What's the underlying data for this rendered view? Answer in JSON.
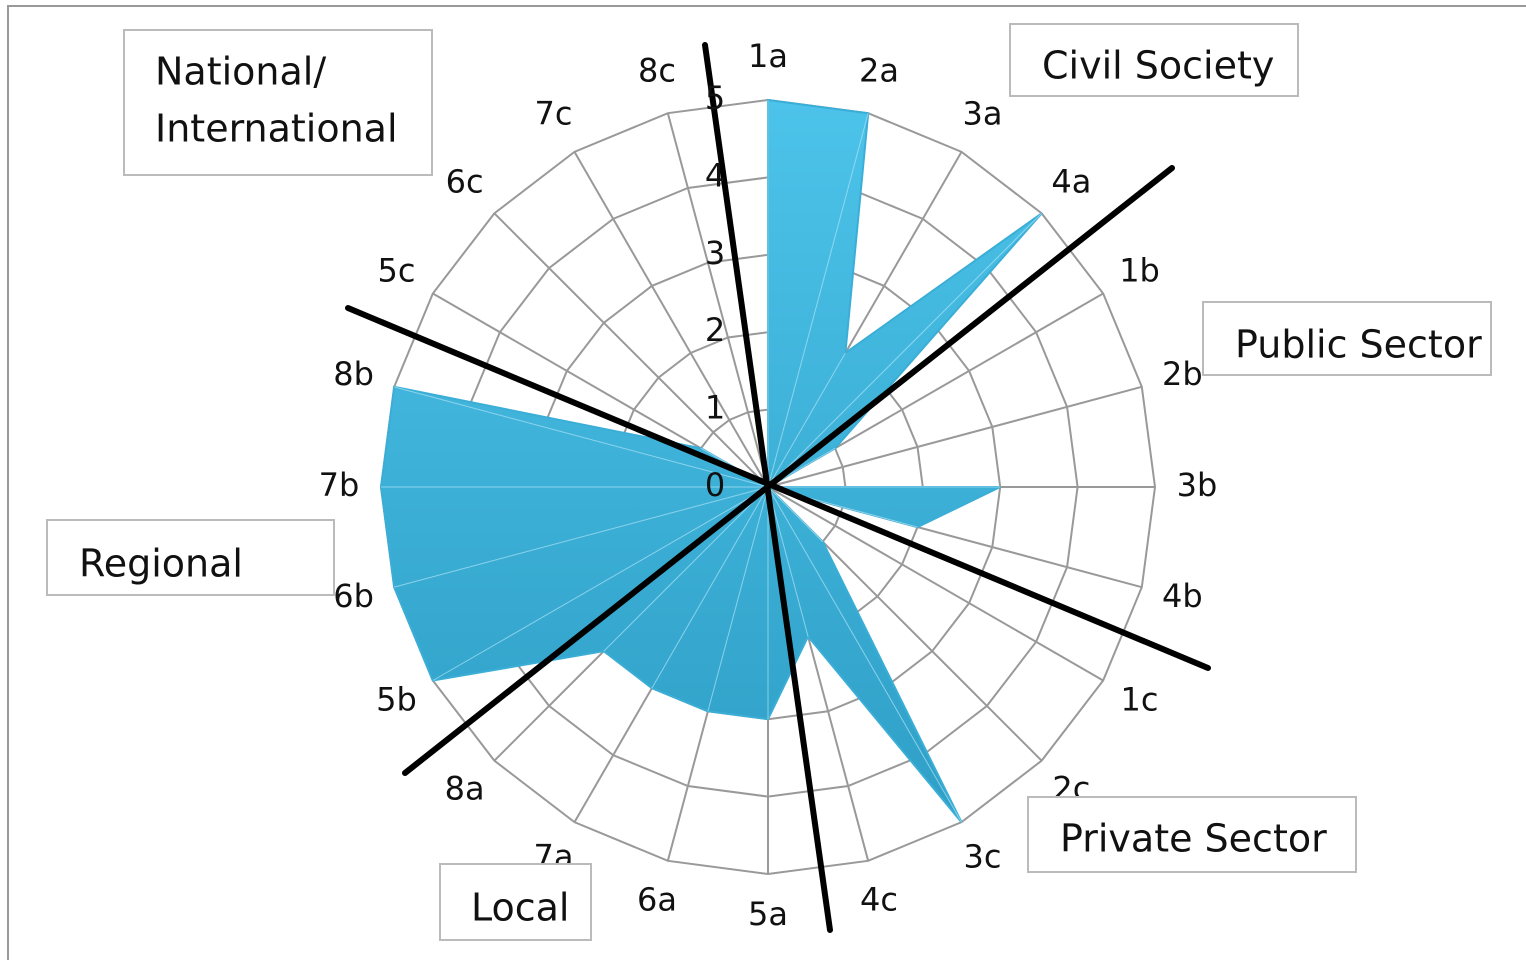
{
  "chart_data": {
    "type": "radar",
    "categories": [
      "1a",
      "2a",
      "3a",
      "4a",
      "1b",
      "2b",
      "3b",
      "4b",
      "1c",
      "2c",
      "3c",
      "4c",
      "5a",
      "6a",
      "7a",
      "8a",
      "5b",
      "6b",
      "7b",
      "8b",
      "5c",
      "6c",
      "7c",
      "8c"
    ],
    "values": [
      5,
      5,
      2,
      5,
      1,
      0,
      3,
      2,
      0,
      1,
      5,
      2,
      3,
      3,
      3,
      3,
      5,
      5,
      5,
      5,
      1,
      0,
      0,
      0
    ],
    "color": "#3aaed6",
    "ylim": [
      0,
      5
    ],
    "yticks": [
      0,
      1,
      2,
      3,
      4,
      5
    ],
    "grid": true,
    "annotations": [
      [
        "National/",
        "International"
      ],
      [
        "Civil Society"
      ],
      [
        "Public Sector"
      ],
      [
        "Private Sector"
      ],
      [
        "Local"
      ],
      [
        "Regional"
      ]
    ]
  }
}
